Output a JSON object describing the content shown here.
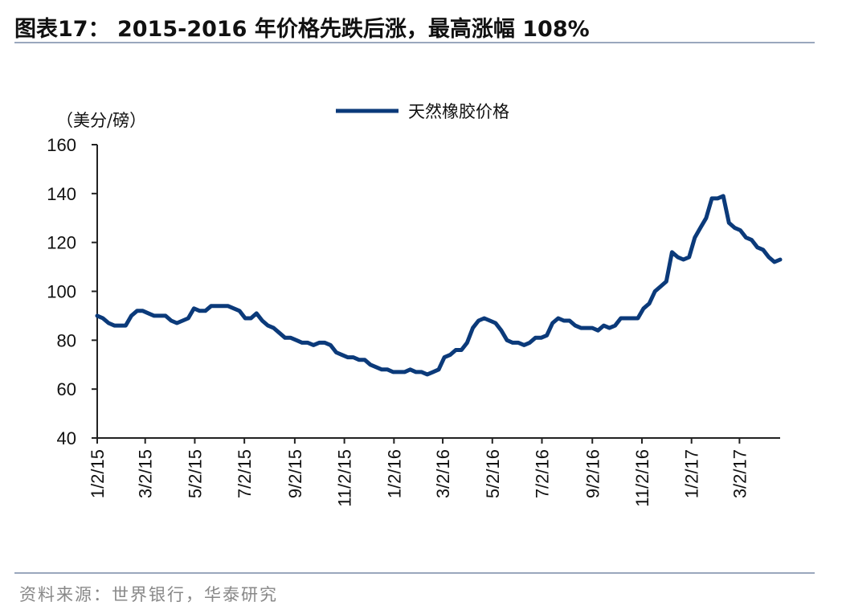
{
  "header": {
    "title": "图表17： 2015-2016 年价格先跌后涨，最高涨幅 108%"
  },
  "footer": {
    "source": "资料来源：世界银行，华泰研究"
  },
  "chart_data": {
    "type": "line",
    "title": "图表17： 2015-2016 年价格先跌后涨，最高涨幅 108%",
    "ylabel": "（美分/磅）",
    "xlabel": "",
    "ylim": [
      40,
      160
    ],
    "yticks": [
      40,
      60,
      80,
      100,
      120,
      140,
      160
    ],
    "xtick_labels": [
      "1/2/15",
      "3/2/15",
      "5/2/15",
      "7/2/15",
      "9/2/15",
      "11/2/15",
      "1/2/16",
      "3/2/16",
      "5/2/16",
      "7/2/16",
      "9/2/16",
      "11/2/16",
      "1/2/17",
      "3/2/17"
    ],
    "legend": "top-center",
    "grid": false,
    "colors": {
      "series": "#0b3a7a",
      "axis": "#222222"
    },
    "series": [
      {
        "name": "天然橡胶价格",
        "x": [
          "2015-01-02",
          "2015-01-09",
          "2015-01-16",
          "2015-01-23",
          "2015-01-30",
          "2015-02-06",
          "2015-02-13",
          "2015-02-20",
          "2015-02-27",
          "2015-03-06",
          "2015-03-13",
          "2015-03-20",
          "2015-03-27",
          "2015-04-03",
          "2015-04-10",
          "2015-04-17",
          "2015-04-24",
          "2015-05-01",
          "2015-05-08",
          "2015-05-15",
          "2015-05-22",
          "2015-05-29",
          "2015-06-05",
          "2015-06-12",
          "2015-06-19",
          "2015-06-26",
          "2015-07-03",
          "2015-07-10",
          "2015-07-17",
          "2015-07-24",
          "2015-07-31",
          "2015-08-07",
          "2015-08-14",
          "2015-08-21",
          "2015-08-28",
          "2015-09-04",
          "2015-09-11",
          "2015-09-18",
          "2015-09-25",
          "2015-10-02",
          "2015-10-09",
          "2015-10-16",
          "2015-10-23",
          "2015-10-30",
          "2015-11-06",
          "2015-11-13",
          "2015-11-20",
          "2015-11-27",
          "2015-12-04",
          "2015-12-11",
          "2015-12-18",
          "2015-12-25",
          "2016-01-01",
          "2016-01-08",
          "2016-01-15",
          "2016-01-22",
          "2016-01-29",
          "2016-02-05",
          "2016-02-12",
          "2016-02-19",
          "2016-02-26",
          "2016-03-04",
          "2016-03-11",
          "2016-03-18",
          "2016-03-25",
          "2016-04-01",
          "2016-04-08",
          "2016-04-15",
          "2016-04-22",
          "2016-04-29",
          "2016-05-06",
          "2016-05-13",
          "2016-05-20",
          "2016-05-27",
          "2016-06-03",
          "2016-06-10",
          "2016-06-17",
          "2016-06-24",
          "2016-07-01",
          "2016-07-08",
          "2016-07-15",
          "2016-07-22",
          "2016-07-29",
          "2016-08-05",
          "2016-08-12",
          "2016-08-19",
          "2016-08-26",
          "2016-09-02",
          "2016-09-09",
          "2016-09-16",
          "2016-09-23",
          "2016-09-30",
          "2016-10-07",
          "2016-10-14",
          "2016-10-21",
          "2016-10-28",
          "2016-11-04",
          "2016-11-11",
          "2016-11-18",
          "2016-11-25",
          "2016-12-02",
          "2016-12-09",
          "2016-12-16",
          "2016-12-23",
          "2016-12-30",
          "2017-01-06",
          "2017-01-13",
          "2017-01-20",
          "2017-01-27",
          "2017-02-03",
          "2017-02-10",
          "2017-02-17",
          "2017-02-24",
          "2017-03-03",
          "2017-03-10",
          "2017-03-17",
          "2017-03-24",
          "2017-03-31",
          "2017-04-07",
          "2017-04-14",
          "2017-04-21"
        ],
        "values": [
          90,
          89,
          87,
          86,
          86,
          86,
          90,
          92,
          92,
          91,
          90,
          90,
          90,
          88,
          87,
          88,
          89,
          93,
          92,
          92,
          94,
          94,
          94,
          94,
          93,
          92,
          89,
          89,
          91,
          88,
          86,
          85,
          83,
          81,
          81,
          80,
          79,
          79,
          78,
          79,
          79,
          78,
          75,
          74,
          73,
          73,
          72,
          72,
          70,
          69,
          68,
          68,
          67,
          67,
          67,
          68,
          67,
          67,
          66,
          67,
          68,
          73,
          74,
          76,
          76,
          79,
          85,
          88,
          89,
          88,
          87,
          84,
          80,
          79,
          79,
          78,
          79,
          81,
          81,
          82,
          87,
          89,
          88,
          88,
          86,
          85,
          85,
          85,
          84,
          86,
          85,
          86,
          89,
          89,
          89,
          89,
          93,
          95,
          100,
          102,
          104,
          116,
          114,
          113,
          114,
          122,
          126,
          130,
          138,
          138,
          139,
          128,
          126,
          125,
          122,
          121,
          118,
          117,
          114,
          112,
          113
        ]
      }
    ]
  }
}
